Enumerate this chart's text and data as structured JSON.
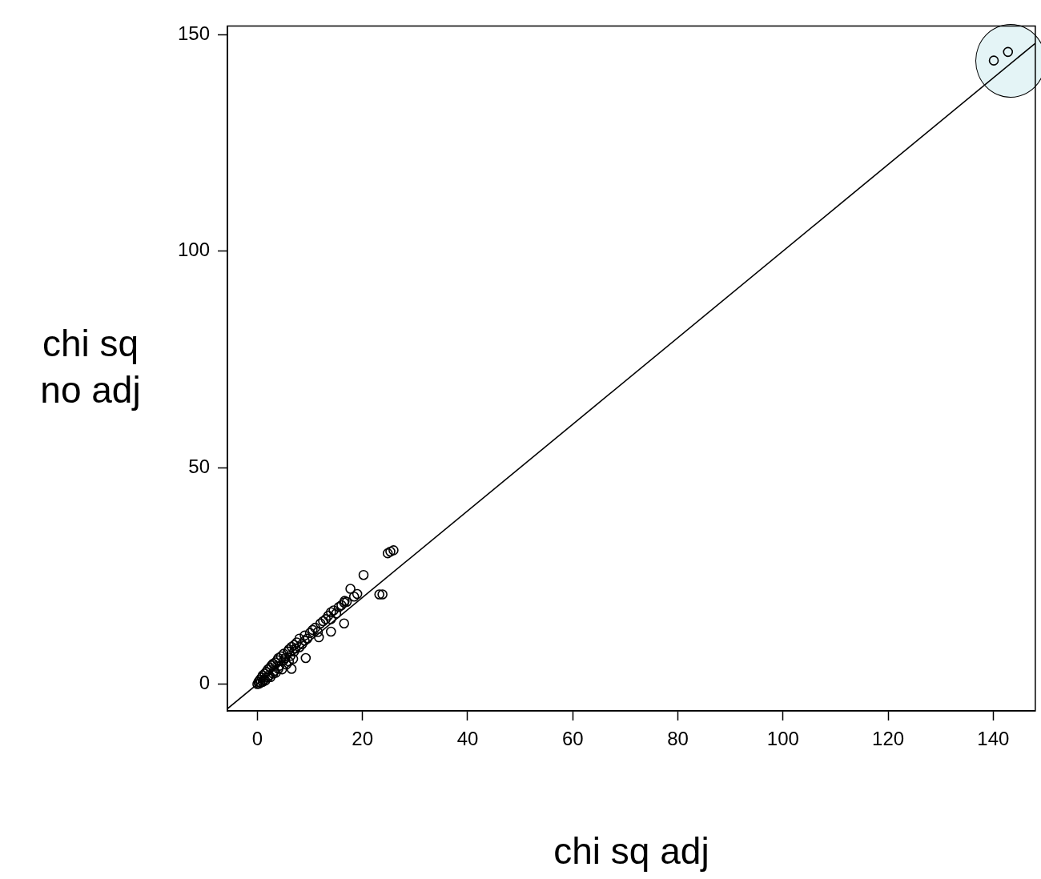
{
  "chart_data": {
    "type": "scatter",
    "xlabel": "chi sq adj",
    "ylabel": "chi sq\nno adj",
    "xlim": [
      -5.7,
      148
    ],
    "ylim": [
      -6.2,
      152
    ],
    "xticks": [
      0,
      20,
      40,
      60,
      80,
      100,
      120,
      140
    ],
    "yticks": [
      0,
      50,
      100,
      150
    ],
    "grid": false,
    "legend": false,
    "marker": "circle",
    "series": [
      {
        "color": "#000000",
        "x": [
          0,
          0.2,
          0.3,
          0.5,
          0.6,
          0.8,
          1,
          1,
          1.2,
          1.4,
          1.5,
          1.7,
          2,
          2,
          2.2,
          2.4,
          2.5,
          2.7,
          3,
          3,
          3.2,
          3.4,
          3.5,
          3.8,
          4,
          4,
          4.2,
          4.5,
          4.7,
          5,
          5,
          5.3,
          5.5,
          5.8,
          6,
          6,
          6.3,
          6.5,
          6.8,
          7,
          7,
          7.3,
          7.5,
          8,
          8,
          8.5,
          9,
          9,
          9.5,
          10,
          10.5,
          11,
          11.5,
          12,
          12.5,
          13,
          13.5,
          14,
          14,
          14.5,
          15,
          15.5,
          16,
          16.5,
          17,
          11.7,
          14,
          16.5,
          16.6,
          17.7,
          18.4,
          19,
          20.2,
          23.2,
          23.8,
          24.8,
          25.3,
          25.9,
          6.5,
          9.2
        ],
        "values": [
          0,
          0.5,
          0.1,
          1,
          0.3,
          1.5,
          0.5,
          2,
          1,
          2.4,
          0.8,
          2.8,
          1.5,
          3.4,
          2,
          3.8,
          1.6,
          4.3,
          2.4,
          4.7,
          3,
          5,
          2.6,
          5.5,
          3.5,
          6,
          4.2,
          6.4,
          3.4,
          5.5,
          7,
          6,
          4.5,
          7.5,
          5.2,
          8,
          6.5,
          8.6,
          5.8,
          7.5,
          9,
          8.2,
          9.6,
          8.5,
          10.5,
          9.2,
          10,
          11.2,
          10.5,
          11.8,
          12.5,
          13,
          12,
          14,
          14.5,
          15,
          15.8,
          15,
          16.6,
          17,
          16.3,
          17.8,
          18.2,
          18.8,
          19,
          10.8,
          12.1,
          14,
          19.2,
          22,
          20.2,
          20.8,
          25.2,
          20.7,
          20.7,
          30.2,
          30.6,
          30.9,
          3.5,
          6
        ]
      },
      {
        "color": "#000000",
        "x": [
          140.1,
          142.8
        ],
        "values": [
          144,
          146
        ]
      },
      {
        "type": "line",
        "color": "#000000",
        "marker": "none",
        "x": [
          -5.7,
          148
        ],
        "values": [
          -5.7,
          148
        ]
      }
    ]
  }
}
